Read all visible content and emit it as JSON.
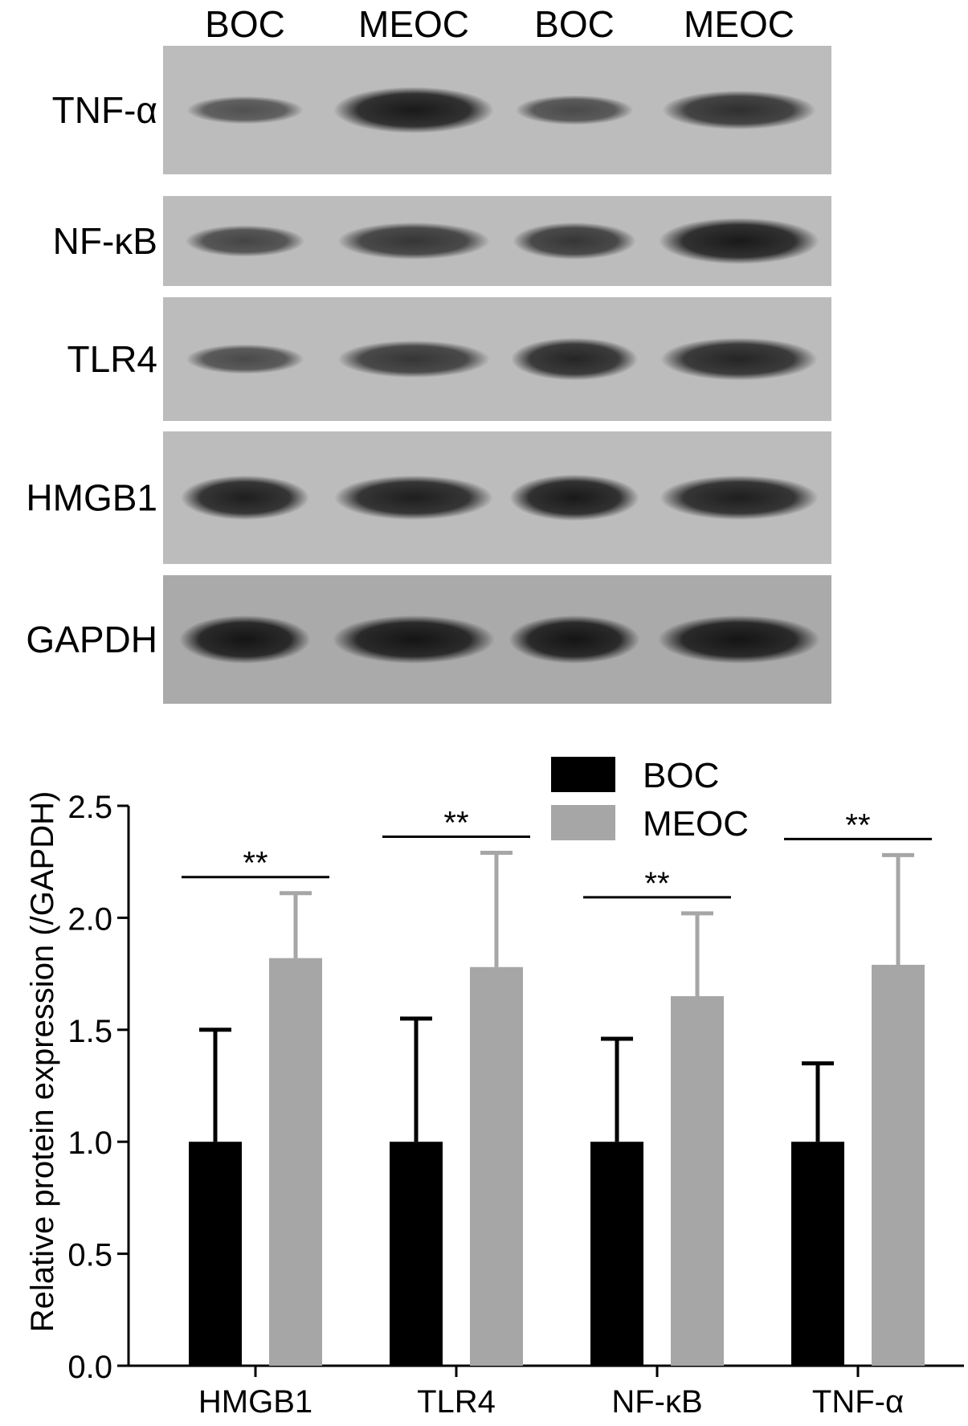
{
  "blot": {
    "lane_labels": [
      "BOC",
      "MEOC",
      "BOC",
      "MEOC"
    ],
    "rows": [
      {
        "label": "TNF-α",
        "band_intensity": [
          0.45,
          0.95,
          0.5,
          0.75
        ]
      },
      {
        "label": "NF-κB",
        "band_intensity": [
          0.55,
          0.7,
          0.7,
          0.95
        ]
      },
      {
        "label": "TLR4",
        "band_intensity": [
          0.5,
          0.7,
          0.85,
          0.85
        ]
      },
      {
        "label": "HMGB1",
        "band_intensity": [
          0.9,
          0.9,
          0.95,
          0.9
        ]
      },
      {
        "label": "GAPDH",
        "band_intensity": [
          1.0,
          1.0,
          1.0,
          1.0
        ]
      }
    ],
    "colors": {
      "membrane_light": "#bcbcbc",
      "membrane_dark": "#aaaaaa",
      "band": "#141414"
    }
  },
  "chart_data": {
    "type": "bar",
    "categories": [
      "HMGB1",
      "TLR4",
      "NF-κB",
      "TNF-α"
    ],
    "series": [
      {
        "name": "BOC",
        "values": [
          1.0,
          1.0,
          1.0,
          1.0
        ],
        "errors": [
          0.5,
          0.55,
          0.46,
          0.35
        ],
        "color": "#000000"
      },
      {
        "name": "MEOC",
        "values": [
          1.82,
          1.78,
          1.65,
          1.79
        ],
        "errors": [
          0.29,
          0.51,
          0.37,
          0.49
        ],
        "color": "#a6a6a6"
      }
    ],
    "significance": [
      "**",
      "**",
      "**",
      "**"
    ],
    "ylabel": "Relative protein expression (/GAPDH)",
    "ylim": [
      0.0,
      2.5
    ],
    "yticks": [
      "0.0",
      "0.5",
      "1.0",
      "1.5",
      "2.0",
      "2.5"
    ],
    "grid": false,
    "legend_position": "top-right"
  }
}
